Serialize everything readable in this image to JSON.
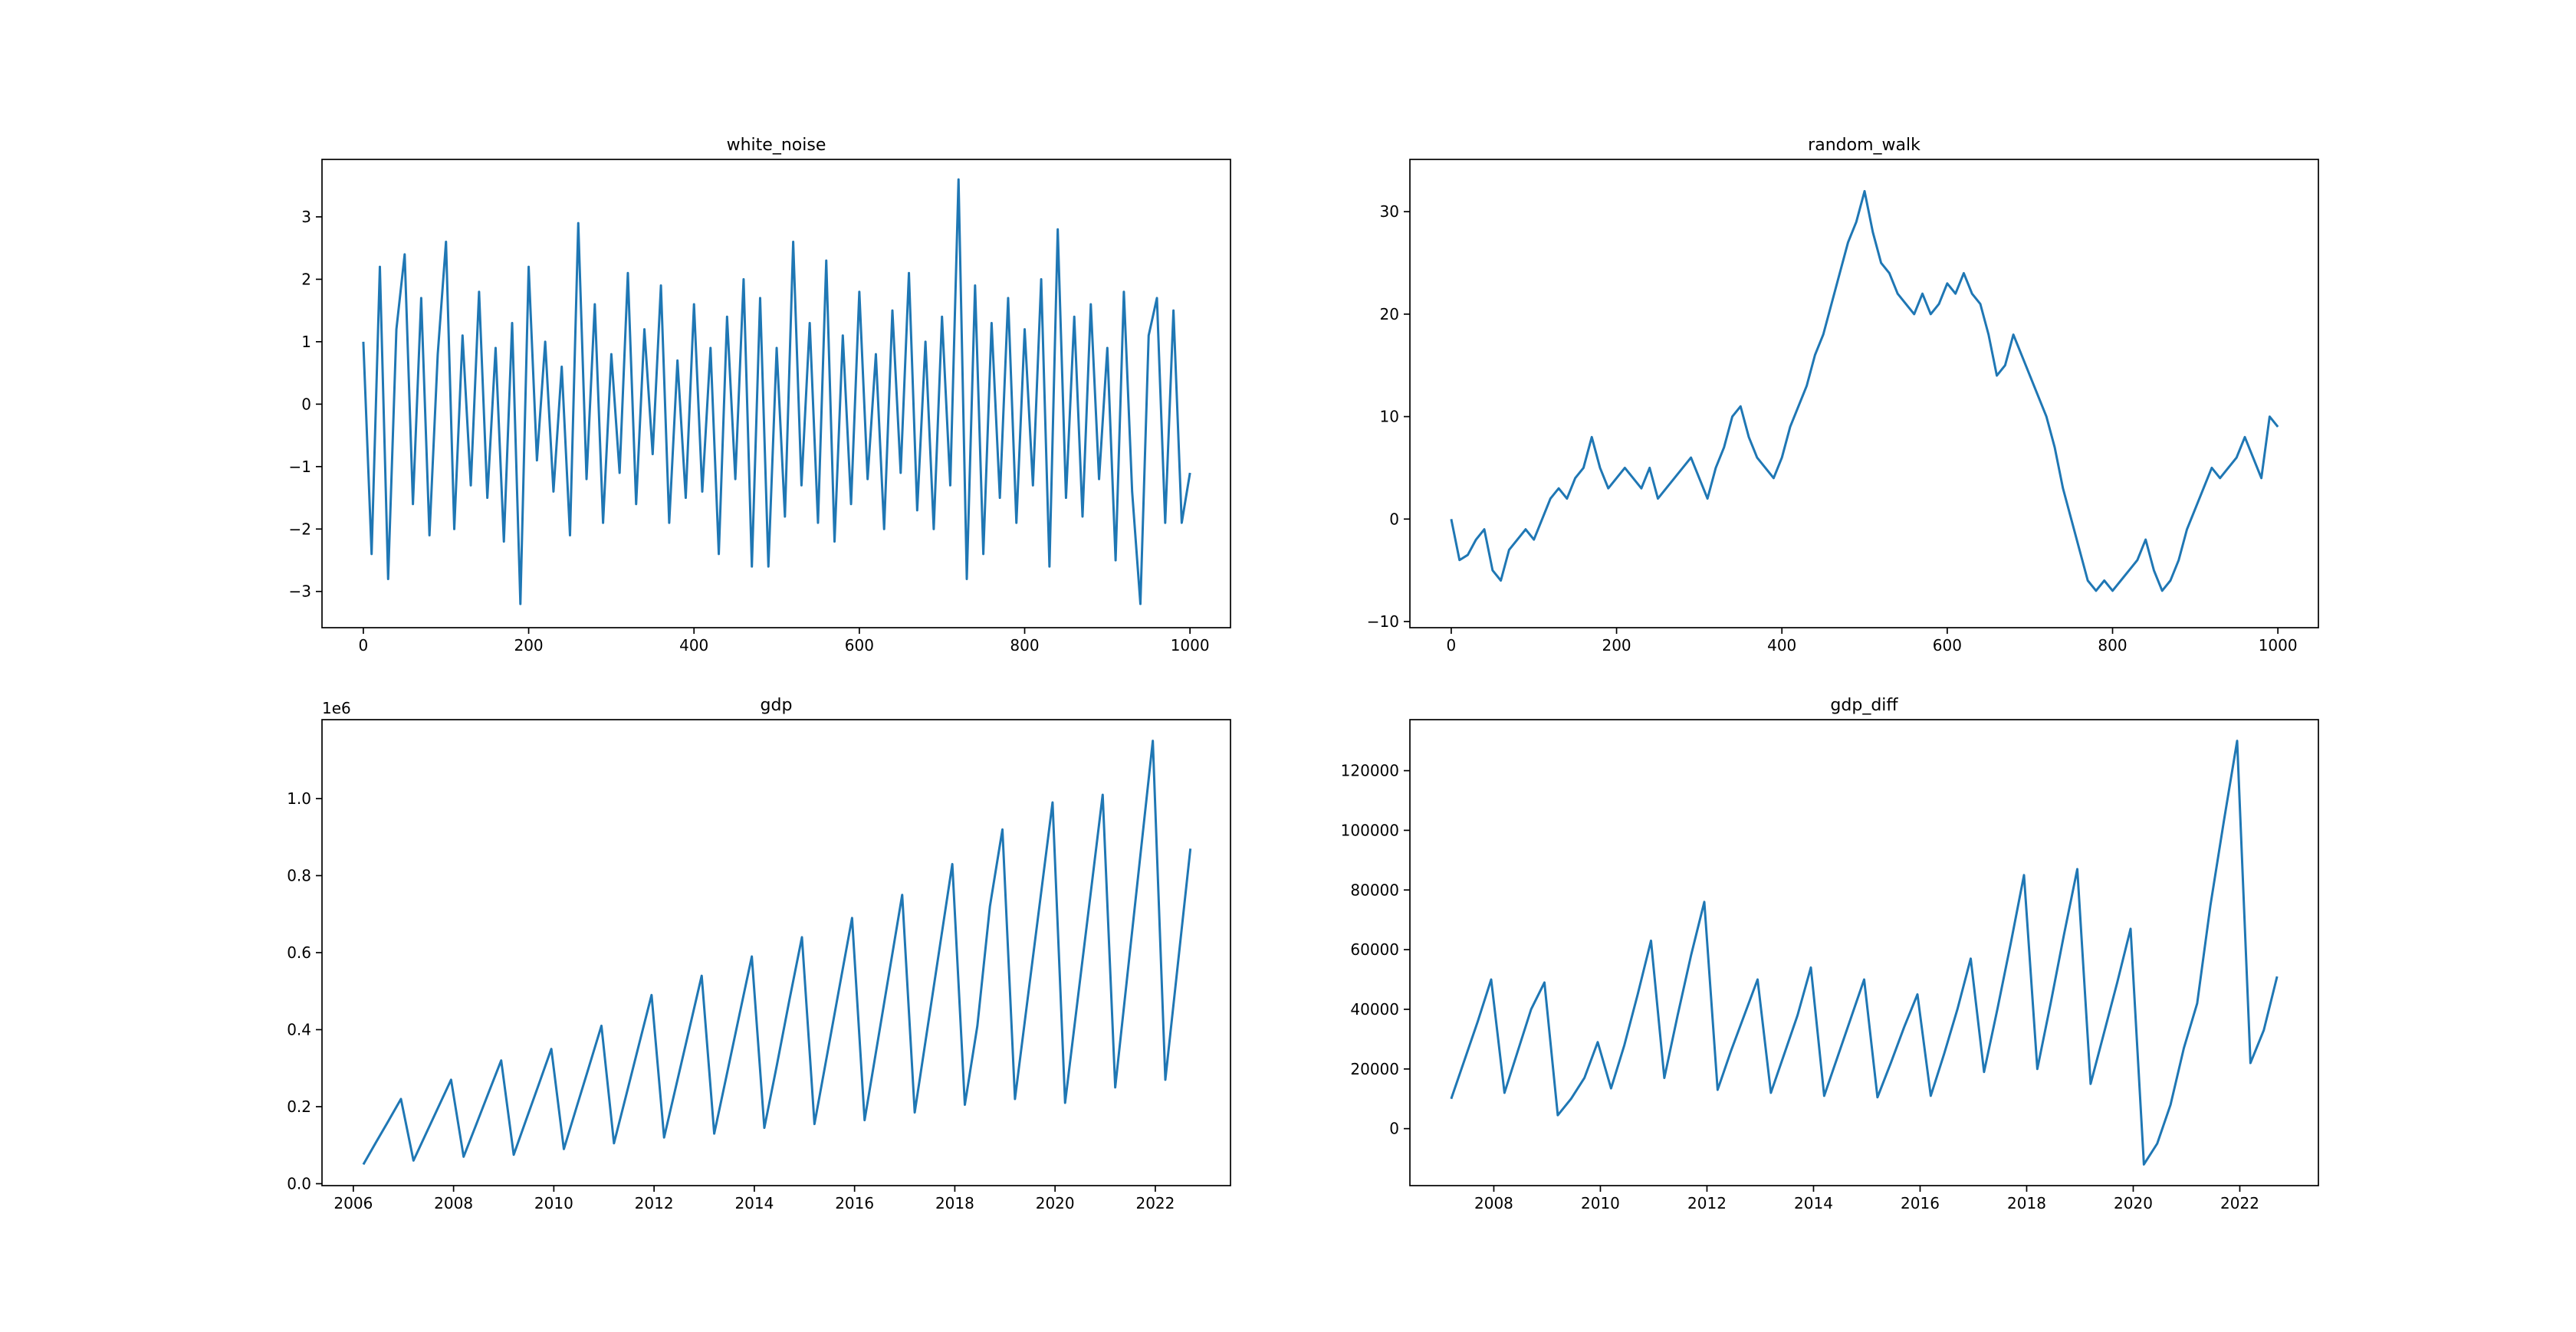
{
  "chart_data": [
    {
      "type": "line",
      "title": "white_noise",
      "color": "#1f77b4",
      "x": [
        0,
        10,
        20,
        30,
        40,
        50,
        60,
        70,
        80,
        90,
        100,
        110,
        120,
        130,
        140,
        150,
        160,
        170,
        180,
        190,
        200,
        210,
        220,
        230,
        240,
        250,
        260,
        270,
        280,
        290,
        300,
        310,
        320,
        330,
        340,
        350,
        360,
        370,
        380,
        390,
        400,
        410,
        420,
        430,
        440,
        450,
        460,
        470,
        480,
        490,
        500,
        510,
        520,
        530,
        540,
        550,
        560,
        570,
        580,
        590,
        600,
        610,
        620,
        630,
        640,
        650,
        660,
        670,
        680,
        690,
        700,
        710,
        720,
        730,
        740,
        750,
        760,
        770,
        780,
        790,
        800,
        810,
        820,
        830,
        840,
        850,
        860,
        870,
        880,
        890,
        900,
        910,
        920,
        930,
        940,
        950,
        960,
        970,
        980,
        990,
        1000
      ],
      "values": [
        1.0,
        -2.4,
        2.2,
        -2.8,
        1.2,
        2.4,
        -1.6,
        1.7,
        -2.1,
        0.8,
        2.6,
        -2.0,
        1.1,
        -1.3,
        1.8,
        -1.5,
        0.9,
        -2.2,
        1.3,
        -3.2,
        2.2,
        -0.9,
        1.0,
        -1.4,
        0.6,
        -2.1,
        2.9,
        -1.2,
        1.6,
        -1.9,
        0.8,
        -1.1,
        2.1,
        -1.6,
        1.2,
        -0.8,
        1.9,
        -1.9,
        0.7,
        -1.5,
        1.6,
        -1.4,
        0.9,
        -2.4,
        1.4,
        -1.2,
        2.0,
        -2.6,
        1.7,
        -2.6,
        0.9,
        -1.8,
        2.6,
        -1.3,
        1.3,
        -1.9,
        2.3,
        -2.2,
        1.1,
        -1.6,
        1.8,
        -1.2,
        0.8,
        -2.0,
        1.5,
        -1.1,
        2.1,
        -1.7,
        1.0,
        -2.0,
        1.4,
        -1.3,
        3.6,
        -2.8,
        1.9,
        -2.4,
        1.3,
        -1.5,
        1.7,
        -1.9,
        1.2,
        -1.3,
        2.0,
        -2.6,
        2.8,
        -1.5,
        1.4,
        -1.8,
        1.6,
        -1.2,
        0.9,
        -2.5,
        1.8,
        -1.4,
        -3.2,
        1.1,
        1.7,
        -1.9,
        1.5,
        -1.9,
        -1.1
      ],
      "xlim": [
        -50,
        1049
      ],
      "ylim": [
        -3.58,
        3.92
      ],
      "xticks": [
        0,
        200,
        400,
        600,
        800,
        1000
      ],
      "yticks": [
        {
          "value": -3,
          "label": "−3"
        },
        {
          "value": -2,
          "label": "−2"
        },
        {
          "value": -1,
          "label": "−1"
        },
        0,
        1,
        2,
        3
      ]
    },
    {
      "type": "line",
      "title": "random_walk",
      "color": "#1f77b4",
      "x": [
        0,
        10,
        20,
        30,
        40,
        50,
        60,
        70,
        80,
        90,
        100,
        110,
        120,
        130,
        140,
        150,
        160,
        170,
        180,
        190,
        200,
        210,
        220,
        230,
        240,
        250,
        260,
        270,
        280,
        290,
        300,
        310,
        320,
        330,
        340,
        350,
        360,
        370,
        380,
        390,
        400,
        410,
        420,
        430,
        440,
        450,
        460,
        470,
        480,
        490,
        500,
        510,
        520,
        530,
        540,
        550,
        560,
        570,
        580,
        590,
        600,
        610,
        620,
        630,
        640,
        650,
        660,
        670,
        680,
        690,
        700,
        710,
        720,
        730,
        740,
        750,
        760,
        770,
        780,
        790,
        800,
        810,
        820,
        830,
        840,
        850,
        860,
        870,
        880,
        890,
        900,
        910,
        920,
        930,
        940,
        950,
        960,
        970,
        980,
        990,
        1000
      ],
      "values": [
        0,
        -4,
        -3.5,
        -2,
        -1,
        -5,
        -6,
        -3,
        -2,
        -1,
        -2,
        0,
        2,
        3,
        2,
        4,
        5,
        8,
        5,
        3,
        4,
        5,
        4,
        3,
        5,
        2,
        3,
        4,
        5,
        6,
        4,
        2,
        5,
        7,
        10,
        11,
        8,
        6,
        5,
        4,
        6,
        9,
        11,
        13,
        16,
        18,
        21,
        24,
        27,
        29,
        32,
        28,
        25,
        24,
        22,
        21,
        20,
        22,
        20,
        21,
        23,
        22,
        24,
        22,
        21,
        18,
        14,
        15,
        18,
        16,
        14,
        12,
        10,
        7,
        3,
        0,
        -3,
        -6,
        -7,
        -6,
        -7,
        -6,
        -5,
        -4,
        -2,
        -5,
        -7,
        -6,
        -4,
        -1,
        1,
        3,
        5,
        4,
        5,
        6,
        8,
        6,
        4,
        10,
        9
      ],
      "xlim": [
        -50,
        1049
      ],
      "ylim": [
        -10.6,
        35.1
      ],
      "xticks": [
        0,
        200,
        400,
        600,
        800,
        1000
      ],
      "yticks": [
        {
          "value": -10,
          "label": "−10"
        },
        0,
        10,
        20,
        30
      ]
    },
    {
      "type": "line",
      "title": "gdp",
      "color": "#1f77b4",
      "y_offset_label": "1e6",
      "x": [
        2006.2,
        2006.45,
        2006.7,
        2006.95,
        2007.2,
        2007.45,
        2007.7,
        2007.95,
        2008.2,
        2008.45,
        2008.7,
        2008.95,
        2009.2,
        2009.45,
        2009.7,
        2009.95,
        2010.2,
        2010.45,
        2010.7,
        2010.95,
        2011.2,
        2011.45,
        2011.7,
        2011.95,
        2012.2,
        2012.45,
        2012.7,
        2012.95,
        2013.2,
        2013.45,
        2013.7,
        2013.95,
        2014.2,
        2014.45,
        2014.7,
        2014.95,
        2015.2,
        2015.45,
        2015.7,
        2015.95,
        2016.2,
        2016.45,
        2016.7,
        2016.95,
        2017.2,
        2017.45,
        2017.7,
        2017.95,
        2018.2,
        2018.45,
        2018.7,
        2018.95,
        2019.2,
        2019.45,
        2019.7,
        2019.95,
        2020.2,
        2020.45,
        2020.7,
        2020.95,
        2021.2,
        2021.45,
        2021.7,
        2021.95,
        2022.2,
        2022.45,
        2022.7
      ],
      "values": [
        0.05,
        0.107,
        0.163,
        0.22,
        0.06,
        0.13,
        0.2,
        0.27,
        0.07,
        0.153,
        0.237,
        0.32,
        0.075,
        0.167,
        0.258,
        0.35,
        0.09,
        0.197,
        0.303,
        0.41,
        0.105,
        0.233,
        0.362,
        0.49,
        0.12,
        0.26,
        0.4,
        0.54,
        0.13,
        0.283,
        0.437,
        0.59,
        0.145,
        0.308,
        0.477,
        0.64,
        0.155,
        0.333,
        0.512,
        0.69,
        0.165,
        0.36,
        0.555,
        0.75,
        0.185,
        0.4,
        0.615,
        0.83,
        0.205,
        0.41,
        0.72,
        0.92,
        0.22,
        0.477,
        0.733,
        0.99,
        0.21,
        0.477,
        0.743,
        1.01,
        0.25,
        0.55,
        0.85,
        1.15,
        0.27,
        0.57,
        0.87
      ],
      "xlim": [
        2005.375,
        2023.5
      ],
      "ylim": [
        -0.005,
        1.205
      ],
      "xticks": [
        2006,
        2008,
        2010,
        2012,
        2014,
        2016,
        2018,
        2020,
        2022
      ],
      "yticks": [
        {
          "value": 0,
          "label": "0.0"
        },
        0.2,
        0.4,
        0.6,
        0.8,
        {
          "value": 1,
          "label": "1.0"
        }
      ]
    },
    {
      "type": "line",
      "title": "gdp_diff",
      "color": "#1f77b4",
      "x": [
        2007.2,
        2007.45,
        2007.7,
        2007.95,
        2008.2,
        2008.45,
        2008.7,
        2008.95,
        2009.2,
        2009.45,
        2009.7,
        2009.95,
        2010.2,
        2010.45,
        2010.7,
        2010.95,
        2011.2,
        2011.45,
        2011.7,
        2011.95,
        2012.2,
        2012.45,
        2012.7,
        2012.95,
        2013.2,
        2013.45,
        2013.7,
        2013.95,
        2014.2,
        2014.45,
        2014.7,
        2014.95,
        2015.2,
        2015.45,
        2015.7,
        2015.95,
        2016.2,
        2016.45,
        2016.7,
        2016.95,
        2017.2,
        2017.45,
        2017.7,
        2017.95,
        2018.2,
        2018.45,
        2018.7,
        2018.95,
        2019.2,
        2019.45,
        2019.7,
        2019.95,
        2020.2,
        2020.45,
        2020.7,
        2020.95,
        2021.2,
        2021.45,
        2021.7,
        2021.95,
        2022.2,
        2022.45,
        2022.7
      ],
      "values": [
        10000,
        23000,
        36000,
        50000,
        12000,
        26000,
        40000,
        49000,
        4500,
        10000,
        17000,
        29000,
        13500,
        28000,
        45000,
        63000,
        17000,
        38000,
        58000,
        76000,
        13000,
        26000,
        38000,
        50000,
        12000,
        25000,
        38000,
        54000,
        11000,
        24000,
        37000,
        50000,
        10500,
        22000,
        34000,
        45000,
        11000,
        25000,
        40000,
        57000,
        19000,
        40000,
        62000,
        85000,
        20000,
        42000,
        65000,
        87000,
        15000,
        32000,
        49000,
        67000,
        -12000,
        -5000,
        8000,
        27000,
        42000,
        75000,
        103000,
        130000,
        22000,
        33000,
        51000
      ],
      "xlim": [
        2006.425,
        2023.475
      ],
      "ylim": [
        -19100,
        137100
      ],
      "xticks": [
        2008,
        2010,
        2012,
        2014,
        2016,
        2018,
        2020,
        2022
      ],
      "yticks": [
        0,
        20000,
        40000,
        60000,
        80000,
        100000,
        120000
      ]
    }
  ]
}
